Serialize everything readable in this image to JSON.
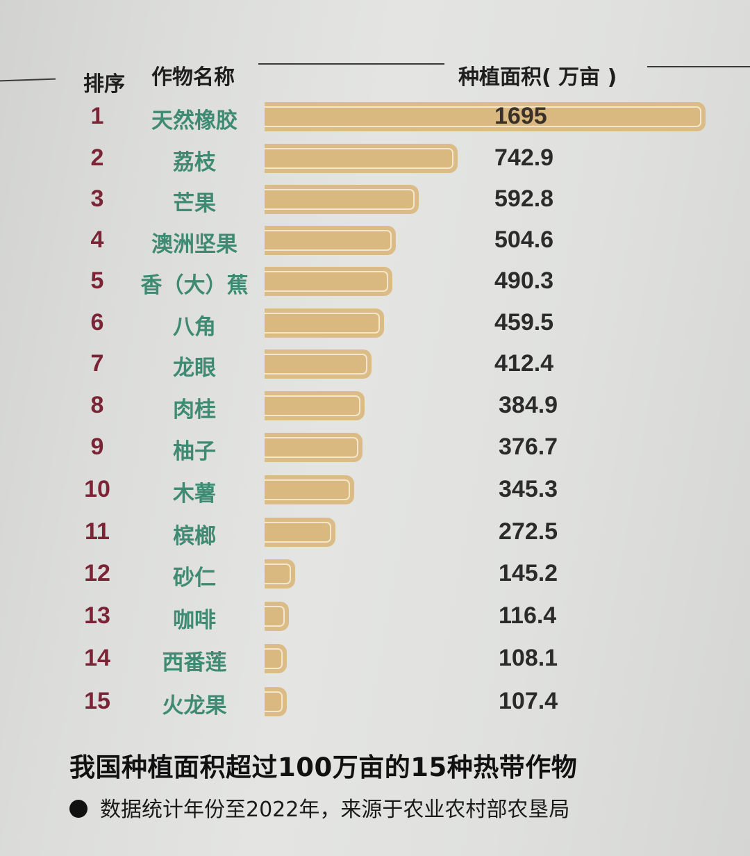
{
  "header": {
    "rank_label": "排序",
    "name_label": "作物名称",
    "area_label": "种植面积( 万亩 )"
  },
  "rows": [
    {
      "rank": "1",
      "name": "天然橡胶",
      "value": "1695"
    },
    {
      "rank": "2",
      "name": "荔枝",
      "value": "742.9"
    },
    {
      "rank": "3",
      "name": "芒果",
      "value": "592.8"
    },
    {
      "rank": "4",
      "name": "澳洲坚果",
      "value": "504.6"
    },
    {
      "rank": "5",
      "name": "香（大）蕉",
      "value": "490.3"
    },
    {
      "rank": "6",
      "name": "八角",
      "value": "459.5"
    },
    {
      "rank": "7",
      "name": "龙眼",
      "value": "412.4"
    },
    {
      "rank": "8",
      "name": "肉桂",
      "value": "384.9"
    },
    {
      "rank": "9",
      "name": "柚子",
      "value": "376.7"
    },
    {
      "rank": "10",
      "name": "木薯",
      "value": "345.3"
    },
    {
      "rank": "11",
      "name": "槟榔",
      "value": "272.5"
    },
    {
      "rank": "12",
      "name": "砂仁",
      "value": "145.2"
    },
    {
      "rank": "13",
      "name": "咖啡",
      "value": "116.4"
    },
    {
      "rank": "14",
      "name": "西番莲",
      "value": "108.1"
    },
    {
      "rank": "15",
      "name": "火龙果",
      "value": "107.4"
    }
  ],
  "footer": {
    "title": "我国种植面积超过100万亩的15种热带作物",
    "note": "数据统计年份至2022年，来源于农业农村部农垦局"
  },
  "colors": {
    "bar": "#dcbc86",
    "rank": "#7a2436",
    "name": "#3f8a72",
    "value": "#2b2b2b"
  },
  "chart_data": {
    "type": "bar",
    "orientation": "horizontal",
    "title": "我国种植面积超过100万亩的15种热带作物",
    "subtitle": "数据统计年份至2022年，来源于农业农村部农垦局",
    "xlabel": "种植面积（万亩）",
    "ylabel": "作物名称",
    "categories": [
      "天然橡胶",
      "荔枝",
      "芒果",
      "澳洲坚果",
      "香（大）蕉",
      "八角",
      "龙眼",
      "肉桂",
      "柚子",
      "木薯",
      "槟榔",
      "砂仁",
      "咖啡",
      "西番莲",
      "火龙果"
    ],
    "ranks": [
      1,
      2,
      3,
      4,
      5,
      6,
      7,
      8,
      9,
      10,
      11,
      12,
      13,
      14,
      15
    ],
    "values": [
      1695,
      742.9,
      592.8,
      504.6,
      490.3,
      459.5,
      412.4,
      384.9,
      376.7,
      345.3,
      272.5,
      145.2,
      116.4,
      108.1,
      107.4
    ],
    "unit": "万亩",
    "grid": false,
    "legend": "none",
    "data_labels": true
  }
}
